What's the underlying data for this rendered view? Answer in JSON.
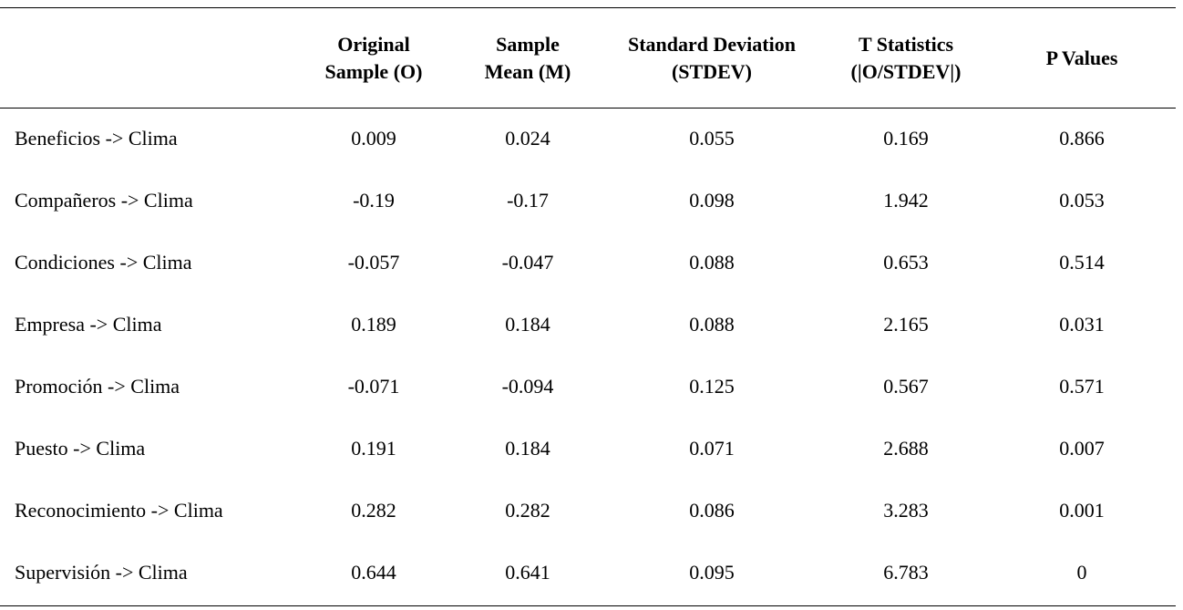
{
  "table": {
    "headers": [
      "",
      "Original\nSample (O)",
      "Sample\nMean (M)",
      "Standard Deviation\n(STDEV)",
      "T Statistics\n(|O/STDEV|)",
      "P Values"
    ],
    "header_lines": [
      [
        "",
        ""
      ],
      [
        "Original",
        "Sample (O)"
      ],
      [
        "Sample",
        "Mean (M)"
      ],
      [
        "Standard Deviation",
        "(STDEV)"
      ],
      [
        "T Statistics",
        "(|O/STDEV|)"
      ],
      [
        "P Values",
        ""
      ]
    ],
    "rows": [
      [
        "Beneficios -> Clima",
        "0.009",
        "0.024",
        "0.055",
        "0.169",
        "0.866"
      ],
      [
        "Compañeros -> Clima",
        "-0.19",
        "-0.17",
        "0.098",
        "1.942",
        "0.053"
      ],
      [
        "Condiciones -> Clima",
        "-0.057",
        "-0.047",
        "0.088",
        "0.653",
        "0.514"
      ],
      [
        "Empresa -> Clima",
        "0.189",
        "0.184",
        "0.088",
        "2.165",
        "0.031"
      ],
      [
        "Promoción -> Clima",
        "-0.071",
        "-0.094",
        "0.125",
        "0.567",
        "0.571"
      ],
      [
        "Puesto -> Clima",
        "0.191",
        "0.184",
        "0.071",
        "2.688",
        "0.007"
      ],
      [
        "Reconocimiento -> Clima",
        "0.282",
        "0.282",
        "0.086",
        "3.283",
        "0.001"
      ],
      [
        "Supervisión -> Clima",
        "0.644",
        "0.641",
        "0.095",
        "6.783",
        "0"
      ]
    ]
  }
}
